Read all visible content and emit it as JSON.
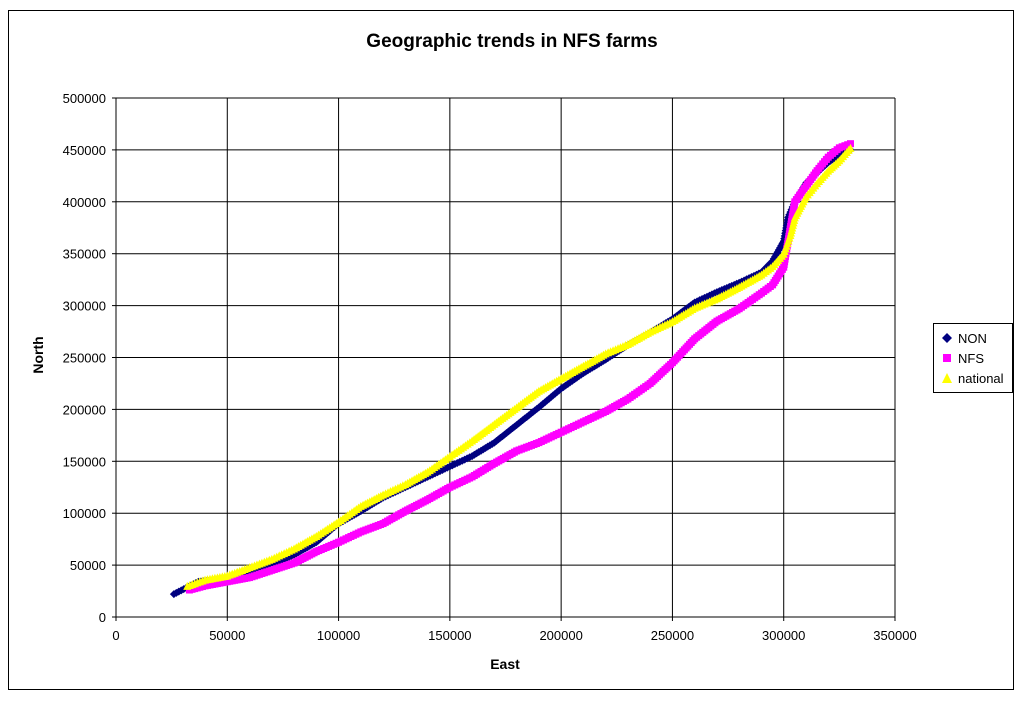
{
  "chart_data": {
    "type": "scatter",
    "title": "Geographic trends in NFS farms",
    "xlabel": "East",
    "ylabel": "North",
    "xlim": [
      0,
      350000
    ],
    "ylim": [
      0,
      500000
    ],
    "x_ticks": [
      "0",
      "50000",
      "100000",
      "150000",
      "200000",
      "250000",
      "300000",
      "350000"
    ],
    "y_ticks": [
      "0",
      "50000",
      "100000",
      "150000",
      "200000",
      "250000",
      "300000",
      "350000",
      "400000",
      "450000",
      "500000"
    ],
    "grid": true,
    "legend_position": "right",
    "series": [
      {
        "name": "NON",
        "color": "#000080",
        "marker": "diamond",
        "x": [
          26000,
          37000,
          50000,
          60000,
          70000,
          80000,
          90000,
          100000,
          110000,
          120000,
          130000,
          140000,
          150000,
          160000,
          170000,
          180000,
          190000,
          200000,
          210000,
          220000,
          230000,
          240000,
          250000,
          260000,
          270000,
          280000,
          290000,
          295000,
          300000,
          302000,
          305000,
          310000,
          315000,
          320000,
          325000,
          330000
        ],
        "y": [
          22000,
          34000,
          36000,
          42000,
          50000,
          60000,
          72000,
          90000,
          102000,
          115000,
          125000,
          135000,
          145000,
          155000,
          168000,
          185000,
          202000,
          220000,
          235000,
          248000,
          262000,
          274000,
          287000,
          303000,
          313000,
          322000,
          332000,
          343000,
          362000,
          385000,
          400000,
          418000,
          428000,
          438000,
          445000,
          450000
        ]
      },
      {
        "name": "NFS",
        "color": "#ff00ff",
        "marker": "square",
        "x": [
          33000,
          40000,
          50000,
          60000,
          70000,
          80000,
          90000,
          100000,
          110000,
          120000,
          130000,
          140000,
          150000,
          160000,
          170000,
          180000,
          190000,
          200000,
          210000,
          220000,
          230000,
          240000,
          250000,
          260000,
          270000,
          280000,
          290000,
          295000,
          300000,
          301000,
          305000,
          310000,
          315000,
          320000,
          325000,
          330000
        ],
        "y": [
          26000,
          30000,
          34000,
          38000,
          45000,
          52000,
          63000,
          72000,
          82000,
          90000,
          102000,
          113000,
          125000,
          135000,
          148000,
          160000,
          168000,
          178000,
          188000,
          198000,
          210000,
          225000,
          245000,
          268000,
          285000,
          297000,
          312000,
          320000,
          337000,
          350000,
          400000,
          415000,
          430000,
          443000,
          452000,
          456000
        ]
      },
      {
        "name": "national",
        "color": "#ffff00",
        "marker": "triangle",
        "x": [
          32000,
          40000,
          50000,
          60000,
          70000,
          80000,
          90000,
          100000,
          110000,
          120000,
          130000,
          140000,
          150000,
          160000,
          170000,
          180000,
          190000,
          200000,
          210000,
          220000,
          230000,
          240000,
          250000,
          260000,
          270000,
          280000,
          290000,
          295000,
          300000,
          303000,
          305000,
          310000,
          315000,
          320000,
          325000,
          330000
        ],
        "y": [
          30000,
          36000,
          40000,
          48000,
          56000,
          66000,
          78000,
          92000,
          107000,
          118000,
          128000,
          140000,
          155000,
          170000,
          186000,
          202000,
          218000,
          230000,
          242000,
          254000,
          263000,
          275000,
          285000,
          298000,
          307000,
          318000,
          330000,
          338000,
          350000,
          368000,
          385000,
          405000,
          418000,
          430000,
          440000,
          452000
        ]
      }
    ]
  }
}
